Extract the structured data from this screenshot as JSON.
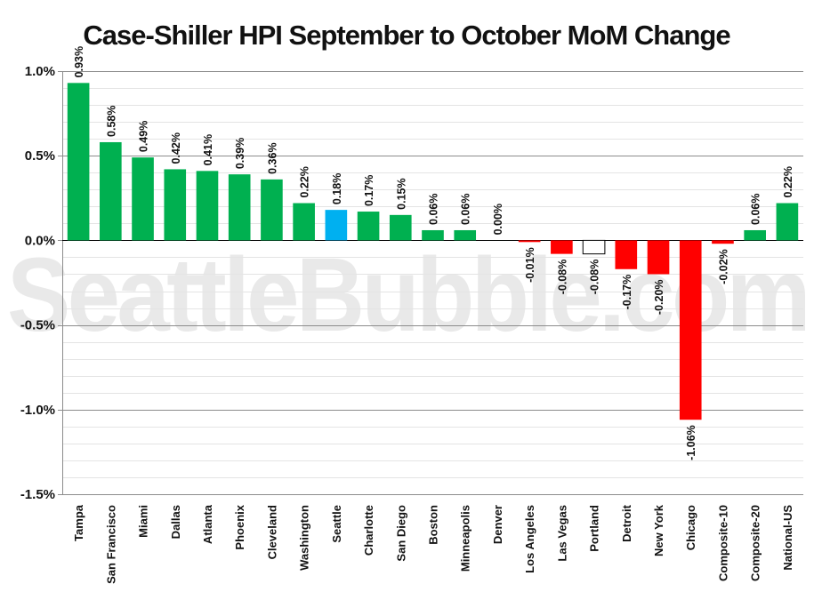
{
  "chart_data": {
    "type": "bar",
    "title": "Case-Shiller HPI  September to October MoM Change",
    "watermark": "SeattleBubble.com",
    "categories": [
      "Tampa",
      "San Francisco",
      "Miami",
      "Dallas",
      "Atlanta",
      "Phoenix",
      "Cleveland",
      "Washington",
      "Seattle",
      "Charlotte",
      "San Diego",
      "Boston",
      "Minneapolis",
      "Denver",
      "Los Angeles",
      "Las Vegas",
      "Portland",
      "Detroit",
      "New York",
      "Chicago",
      "Composite-10",
      "Composite-20",
      "National-US"
    ],
    "values": [
      0.93,
      0.58,
      0.49,
      0.42,
      0.41,
      0.39,
      0.36,
      0.22,
      0.18,
      0.17,
      0.15,
      0.06,
      0.06,
      0.0,
      -0.01,
      -0.08,
      -0.08,
      -0.17,
      -0.2,
      -1.06,
      -0.02,
      0.06,
      0.22
    ],
    "data_labels": [
      "0.93%",
      "0.58%",
      "0.49%",
      "0.42%",
      "0.41%",
      "0.39%",
      "0.36%",
      "0.22%",
      "0.18%",
      "0.17%",
      "0.15%",
      "0.06%",
      "0.06%",
      "0.00%",
      "-0.01%",
      "-0.08%",
      "-0.08%",
      "-0.17%",
      "-0.20%",
      "-1.06%",
      "-0.02%",
      "0.06%",
      "0.22%"
    ],
    "bar_fills": [
      "#00b050",
      "#00b050",
      "#00b050",
      "#00b050",
      "#00b050",
      "#00b050",
      "#00b050",
      "#00b050",
      "#00b0f0",
      "#00b050",
      "#00b050",
      "#00b050",
      "#00b050",
      "#00b050",
      "#ff0000",
      "#ff0000",
      "#ffffff",
      "#ff0000",
      "#ff0000",
      "#ff0000",
      "#ff0000",
      "#00b050",
      "#00b050"
    ],
    "ylim": [
      -1.5,
      1.0
    ],
    "yticks": [
      1.0,
      0.5,
      0.0,
      -0.5,
      -1.0,
      -1.5
    ],
    "ytick_labels": [
      "1.0%",
      "0.5%",
      "0.0%",
      "-0.5%",
      "-1.0%",
      "-1.5%"
    ],
    "xlabel": "",
    "ylabel": "",
    "grid": true,
    "colors": {
      "positive": "#00b050",
      "negative": "#ff0000",
      "highlight": "#00b0f0"
    }
  }
}
